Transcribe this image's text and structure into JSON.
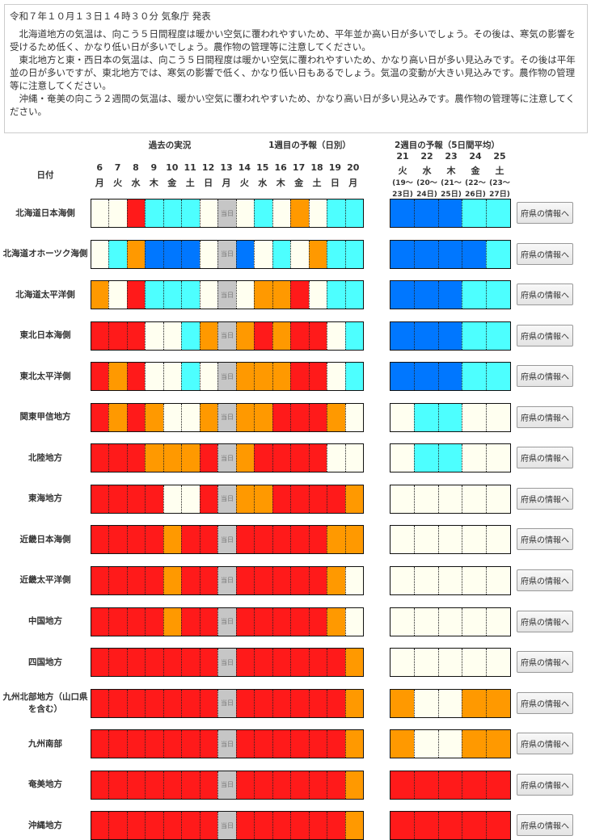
{
  "notice": {
    "title": "令和７年１０月１３日１４時３０分 気象庁 発表",
    "paragraphs": [
      "北海道地方の気温は、向こう５日間程度は暖かい空気に覆われやすいため、平年並か高い日が多いでしょう。その後は、寒気の影響を受けるため低く、かなり低い日が多いでしょう。農作物の管理等に注意してください。",
      "東北地方と東・西日本の気温は、向こう５日間程度は暖かい空気に覆われやすいため、かなり高い日が多い見込みです。その後は平年並の日が多いですが、東北地方では、寒気の影響で低く、かなり低い日もあるでしょう。気温の変動が大きい見込みです。農作物の管理等に注意してください。",
      "沖縄・奄美の向こう２週間の気温は、暖かい空気に覆われやすいため、かなり高い日が多い見込みです。農作物の管理等に注意してください。"
    ]
  },
  "table": {
    "date_label": "日付",
    "past_label": "過去の実況",
    "week1_label": "1週目の予報（日別）",
    "week2_label": "2週目の予報（5日間平均）",
    "today_label": "当日",
    "button_label": "府県の情報へ",
    "days": [
      {
        "n": "6",
        "d": "月"
      },
      {
        "n": "7",
        "d": "火"
      },
      {
        "n": "8",
        "d": "水"
      },
      {
        "n": "9",
        "d": "木"
      },
      {
        "n": "10",
        "d": "金"
      },
      {
        "n": "11",
        "d": "土"
      },
      {
        "n": "12",
        "d": "日"
      },
      {
        "n": "13",
        "d": "月"
      },
      {
        "n": "14",
        "d": "火"
      },
      {
        "n": "15",
        "d": "水"
      },
      {
        "n": "16",
        "d": "木"
      },
      {
        "n": "17",
        "d": "金"
      },
      {
        "n": "18",
        "d": "土"
      },
      {
        "n": "19",
        "d": "日"
      },
      {
        "n": "20",
        "d": "月"
      }
    ],
    "week2": [
      {
        "n": "21",
        "d": "火",
        "r1": "(19～",
        "r2": "23日)"
      },
      {
        "n": "22",
        "d": "水",
        "r1": "(20～",
        "r2": "24日)"
      },
      {
        "n": "23",
        "d": "木",
        "r1": "(21～",
        "r2": "25日)"
      },
      {
        "n": "24",
        "d": "金",
        "r1": "(22～",
        "r2": "26日)"
      },
      {
        "n": "25",
        "d": "土",
        "r1": "(23～",
        "r2": "27日)"
      }
    ],
    "colors": {
      "W": "#fffff0",
      "C": "#4dffff",
      "B": "#0077ff",
      "O": "#ff9900",
      "R": "#ff1a1a",
      "T": "#c6c6c6"
    },
    "rows": [
      {
        "name": "北海道日本海側",
        "daily": "WWRCCCWTWCWOWCC",
        "weekly": "BBBCC"
      },
      {
        "name": "北海道オホーツク海側",
        "daily": "WCOBBBWTBWCWOCC",
        "weekly": "BBBBC"
      },
      {
        "name": "北海道太平洋側",
        "daily": "OWRCCCWTWOORWCC",
        "weekly": "BBBCC"
      },
      {
        "name": "東北日本海側",
        "daily": "RRRWWCOTORORRWC",
        "weekly": "BBBCC"
      },
      {
        "name": "東北太平洋側",
        "daily": "RORWWCWTOOORRWC",
        "weekly": "BBBCC"
      },
      {
        "name": "関東甲信地方",
        "daily": "ROROWWOTOORRROW",
        "weekly": "WCCWW"
      },
      {
        "name": "北陸地方",
        "daily": "RRROOORTORRRRWW",
        "weekly": "WCCWW"
      },
      {
        "name": "東海地方",
        "daily": "RRRRWWRTOORRRRO",
        "weekly": "WWWWW"
      },
      {
        "name": "近畿日本海側",
        "daily": "RRRRORRTRRRRROO",
        "weekly": "WWWWW"
      },
      {
        "name": "近畿太平洋側",
        "daily": "RRRRORRTRRRRROW",
        "weekly": "WWWWW"
      },
      {
        "name": "中国地方",
        "daily": "RRRRORRTRRRRROW",
        "weekly": "WWWWW"
      },
      {
        "name": "四国地方",
        "daily": "RRRRRRRTRRRRRRO",
        "weekly": "WWWWW"
      },
      {
        "name": "九州北部地方（山口県を含む）",
        "daily": "RRRRRRRTRRRRRRO",
        "weekly": "OWWOO"
      },
      {
        "name": "九州南部",
        "daily": "RRRRRRRTRRRRRRO",
        "weekly": "OWWOO"
      },
      {
        "name": "奄美地方",
        "daily": "RRRRRRRTRRRRRRO",
        "weekly": "RRRRR"
      },
      {
        "name": "沖縄地方",
        "daily": "RRRRRRRTRRRRRRO",
        "weekly": "RRRRR"
      }
    ]
  }
}
